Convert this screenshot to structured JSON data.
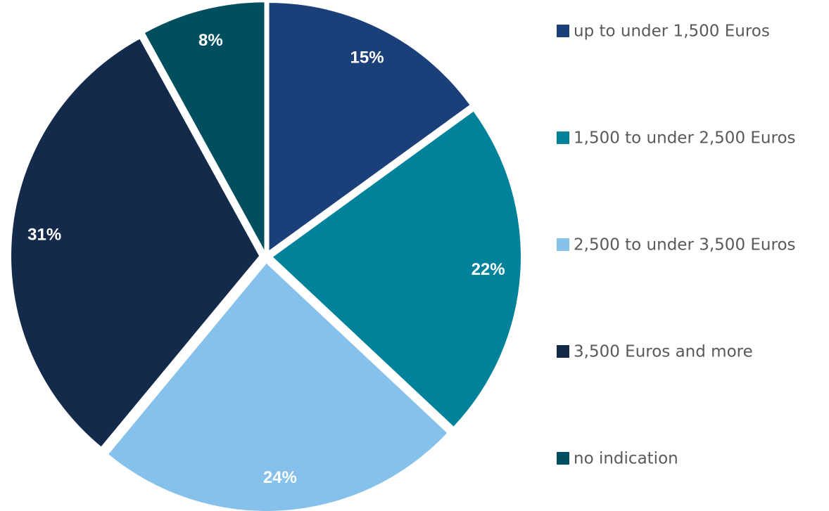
{
  "chart_data": {
    "type": "pie",
    "categories": [
      "up to under 1,500 Euros",
      "1,500 to under 2,500 Euros",
      "2,500 to under 3,500 Euros",
      "3,500 Euros and more",
      "no indication"
    ],
    "values": [
      15,
      22,
      24,
      31,
      8
    ],
    "value_labels": [
      "15%",
      "22%",
      "24%",
      "31%",
      "8%"
    ],
    "colors": [
      "#1b3f78",
      "#00829b",
      "#85c1ea",
      "#132a4a",
      "#014f5e"
    ],
    "legend": "right"
  }
}
